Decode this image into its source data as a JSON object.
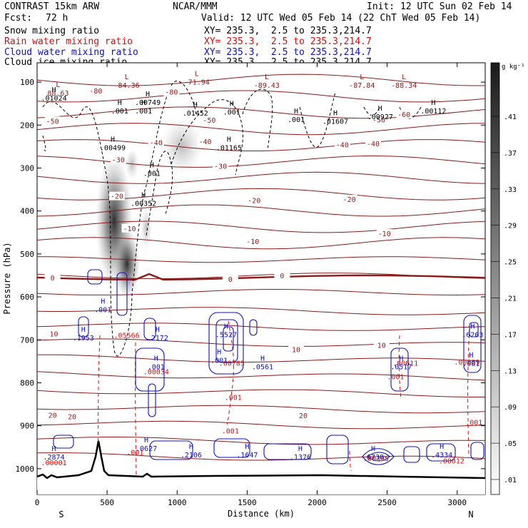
{
  "header": {
    "model": "CONTRAST 15km ARW",
    "center": "NCAR/MMM",
    "init": "Init: 12 UTC Sun 02 Feb 14",
    "fcst_label": "Fcst:",
    "fcst_value": "72 h",
    "valid": "Valid: 12 UTC Wed 05 Feb 14 (22 ChT Wed 05 Feb 14)"
  },
  "fields": [
    {
      "name": "Snow mixing ratio",
      "xy": "XY= 235.3,  2.5 to 235.3,214.7",
      "color": "#000000"
    },
    {
      "name": "Rain water mixing ratio",
      "xy": "XY= 235.3,  2.5 to 235.3,214.7",
      "color": "#d01010"
    },
    {
      "name": "Cloud water mixing ratio",
      "xy": "XY= 235.3,  2.5 to 235.3,214.7",
      "color": "#1010c0"
    },
    {
      "name": "Cloud ice mixing ratio",
      "xy": "XY= 235.3,  2.5 to 235.3,214.7",
      "color": "#000000"
    }
  ],
  "colorbar": {
    "unit": "g kg⁻¹",
    "ticks": [
      ".41",
      ".37",
      ".33",
      ".29",
      ".25",
      ".21",
      ".17",
      ".13",
      ".09",
      ".05",
      ".01"
    ]
  },
  "chart_data": {
    "type": "heatmap",
    "xlabel": "Distance (km)",
    "ylabel": "Pressure (hPa)",
    "xlim": [
      0,
      3200
    ],
    "ylim": [
      1000,
      100
    ],
    "x_ticks": [
      0,
      500,
      1000,
      1500,
      2000,
      2500,
      3000
    ],
    "y_ticks": [
      100,
      200,
      300,
      400,
      500,
      600,
      700,
      800,
      900,
      1000
    ],
    "x_end_labels": {
      "left": "S",
      "right": "N"
    },
    "temperature_isotherms": [
      {
        "label": "-80",
        "p": 120
      },
      {
        "label": "-80",
        "p": 122
      },
      {
        "label": "-60",
        "p": 175
      },
      {
        "label": "-50",
        "p": 190
      },
      {
        "label": "-50",
        "p": 188
      },
      {
        "label": "-50",
        "p": 187
      },
      {
        "label": "-40",
        "p": 240
      },
      {
        "label": "-40",
        "p": 238
      },
      {
        "label": "-40",
        "p": 245
      },
      {
        "label": "-40",
        "p": 243
      },
      {
        "label": "-30",
        "p": 280
      },
      {
        "label": "-30",
        "p": 295
      },
      {
        "label": "-20",
        "p": 365
      },
      {
        "label": "-20",
        "p": 375
      },
      {
        "label": "-20",
        "p": 372
      },
      {
        "label": "-10",
        "p": 440
      },
      {
        "label": "-10",
        "p": 470
      },
      {
        "label": "-10",
        "p": 452
      },
      {
        "label": "0",
        "p": 555
      },
      {
        "label": "0",
        "p": 558
      },
      {
        "label": "0",
        "p": 550
      },
      {
        "label": "10",
        "p": 685
      },
      {
        "label": "10",
        "p": 712
      },
      {
        "label": "10",
        "p": 722
      },
      {
        "label": "20",
        "p": 875
      },
      {
        "label": "20",
        "p": 878
      },
      {
        "label": "20",
        "p": 876
      }
    ],
    "isotherm_label_positions_km": [
      {
        "label": "-80",
        "x": 420
      },
      {
        "label": "-80",
        "x": 960
      },
      {
        "label": "-60",
        "x": 2620
      },
      {
        "label": "-50",
        "x": 110
      },
      {
        "label": "-50",
        "x": 1230
      },
      {
        "label": "-50",
        "x": 2440
      },
      {
        "label": "-40",
        "x": 850
      },
      {
        "label": "-40",
        "x": 1200
      },
      {
        "label": "-40",
        "x": 2180
      },
      {
        "label": "-40",
        "x": 2400
      },
      {
        "label": "-30",
        "x": 580
      },
      {
        "label": "-30",
        "x": 1310
      },
      {
        "label": "-20",
        "x": 570
      },
      {
        "label": "-20",
        "x": 1550
      },
      {
        "label": "-20",
        "x": 2230
      },
      {
        "label": "-10",
        "x": 660
      },
      {
        "label": "-10",
        "x": 1540
      },
      {
        "label": "-10",
        "x": 2480
      },
      {
        "label": "0",
        "x": 110
      },
      {
        "label": "0",
        "x": 1380
      },
      {
        "label": "0",
        "x": 1750
      },
      {
        "label": "10",
        "x": 120
      },
      {
        "label": "10",
        "x": 2460
      },
      {
        "label": "10",
        "x": 1850
      },
      {
        "label": "20",
        "x": 110
      },
      {
        "label": "20",
        "x": 250
      },
      {
        "label": "20",
        "x": 1900
      }
    ],
    "low_markers": [
      {
        "x": 640,
        "p": 100,
        "value": "-84.36"
      },
      {
        "x": 1140,
        "p": 92,
        "value": "-71.94"
      },
      {
        "x": 1640,
        "p": 100,
        "value": "-89.43"
      },
      {
        "x": 2320,
        "p": 100,
        "value": "-87.84"
      },
      {
        "x": 2620,
        "p": 100,
        "value": "-88.34"
      },
      {
        "x": 150,
        "p": 118,
        "value": "88.63"
      }
    ],
    "high_markers": [
      {
        "x": 120,
        "p": 130,
        "value": ".01024"
      },
      {
        "x": 790,
        "p": 140,
        "value": ".00749"
      },
      {
        "x": 590,
        "p": 160,
        "value": ".001"
      },
      {
        "x": 760,
        "p": 160,
        "value": ".001"
      },
      {
        "x": 1130,
        "p": 165,
        "value": ".01452"
      },
      {
        "x": 1390,
        "p": 162,
        "value": ".001"
      },
      {
        "x": 1850,
        "p": 180,
        "value": ".001"
      },
      {
        "x": 2130,
        "p": 184,
        "value": ".01607"
      },
      {
        "x": 2450,
        "p": 173,
        "value": ".00927"
      },
      {
        "x": 2830,
        "p": 160,
        "value": ".00112"
      },
      {
        "x": 540,
        "p": 245,
        "value": ".00499"
      },
      {
        "x": 1370,
        "p": 245,
        "value": ".01165"
      },
      {
        "x": 820,
        "p": 305,
        "value": ".001"
      },
      {
        "x": 760,
        "p": 375,
        "value": ".00352"
      }
    ],
    "rain_water_markers": [
      {
        "x": 640,
        "p": 695,
        "value": ".05566"
      },
      {
        "x": 1390,
        "p": 760,
        "value": ".00785"
      },
      {
        "x": 1400,
        "p": 840,
        "value": ".001"
      },
      {
        "x": 1380,
        "p": 918,
        "value": ".001"
      },
      {
        "x": 2560,
        "p": 792,
        "value": ".001"
      },
      {
        "x": 3120,
        "p": 898,
        "value": ".001"
      },
      {
        "x": 3070,
        "p": 758,
        "value": ".00009"
      },
      {
        "x": 2630,
        "p": 760,
        "value": ".00611"
      },
      {
        "x": 850,
        "p": 780,
        "value": ".00034"
      },
      {
        "x": 700,
        "p": 968,
        "value": ".001"
      },
      {
        "x": 120,
        "p": 992,
        "value": ".00001"
      },
      {
        "x": 2420,
        "p": 982,
        "value": ".00395"
      },
      {
        "x": 2960,
        "p": 988,
        "value": ".00012"
      }
    ],
    "cloud_water_markers": [
      {
        "x": 470,
        "p": 632,
        "value": ".001"
      },
      {
        "x": 330,
        "p": 698,
        "value": ".1953"
      },
      {
        "x": 860,
        "p": 698,
        "value": ".2172"
      },
      {
        "x": 1350,
        "p": 690,
        "value": ".5527"
      },
      {
        "x": 1300,
        "p": 750,
        "value": ".001"
      },
      {
        "x": 1610,
        "p": 765,
        "value": ".0561"
      },
      {
        "x": 2600,
        "p": 765,
        "value": ".0517"
      },
      {
        "x": 3110,
        "p": 690,
        "value": ".6263"
      },
      {
        "x": 850,
        "p": 765,
        "value": ".001"
      },
      {
        "x": 120,
        "p": 975,
        "value": ".2874"
      },
      {
        "x": 780,
        "p": 955,
        "value": ".0627"
      },
      {
        "x": 1100,
        "p": 970,
        "value": ".2106"
      },
      {
        "x": 1500,
        "p": 970,
        "value": ".1647"
      },
      {
        "x": 1880,
        "p": 975,
        "value": ".1376"
      },
      {
        "x": 2400,
        "p": 975,
        "value": ".6738"
      },
      {
        "x": 2890,
        "p": 970,
        "value": ".4334"
      },
      {
        "x": 3100,
        "p": 758,
        "value": ".001"
      }
    ],
    "snow_max_location": {
      "x": 620,
      "p": 470
    },
    "terrain_peak_km": 450
  }
}
